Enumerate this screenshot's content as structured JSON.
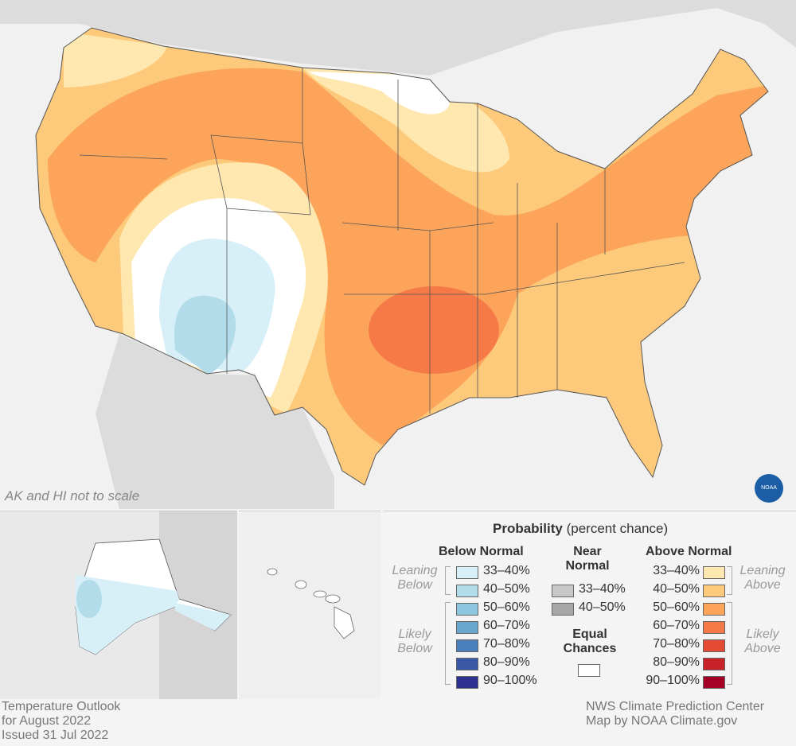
{
  "map": {
    "scale_note": "AK and HI not to scale",
    "logo_text": "NOAA"
  },
  "legend": {
    "title": "Probability",
    "title_suffix": "(percent chance)",
    "below_header": "Below Normal",
    "near_header": "Near Normal",
    "above_header": "Above Normal",
    "leaning_below": "Leaning Below",
    "likely_below": "Likely Below",
    "leaning_above": "Leaning Above",
    "likely_above": "Likely Above",
    "equal_chances": "Equal Chances",
    "below": [
      {
        "label": "33–40%",
        "color": "#d7eff7"
      },
      {
        "label": "40–50%",
        "color": "#b3dcea"
      },
      {
        "label": "50–60%",
        "color": "#8dc6de"
      },
      {
        "label": "60–70%",
        "color": "#6aa6cd"
      },
      {
        "label": "70–80%",
        "color": "#4b80bc"
      },
      {
        "label": "80–90%",
        "color": "#3a58a6"
      },
      {
        "label": "90–100%",
        "color": "#2c3190"
      }
    ],
    "near": [
      {
        "label": "33–40%",
        "color": "#c8c8c8"
      },
      {
        "label": "40–50%",
        "color": "#a7a7a7"
      }
    ],
    "above": [
      {
        "label": "33–40%",
        "color": "#fee8b0"
      },
      {
        "label": "40–50%",
        "color": "#fdc97b"
      },
      {
        "label": "50–60%",
        "color": "#fca45a"
      },
      {
        "label": "60–70%",
        "color": "#f57a48"
      },
      {
        "label": "70–80%",
        "color": "#e34b33"
      },
      {
        "label": "80–90%",
        "color": "#c9232a"
      },
      {
        "label": "90–100%",
        "color": "#a50026"
      }
    ]
  },
  "footer": {
    "line1": "Temperature Outlook",
    "line2": "for August 2022",
    "line3": "Issued 31 Jul 2022",
    "credit1": "NWS Climate Prediction Center",
    "credit2": "Map by NOAA Climate.gov"
  }
}
